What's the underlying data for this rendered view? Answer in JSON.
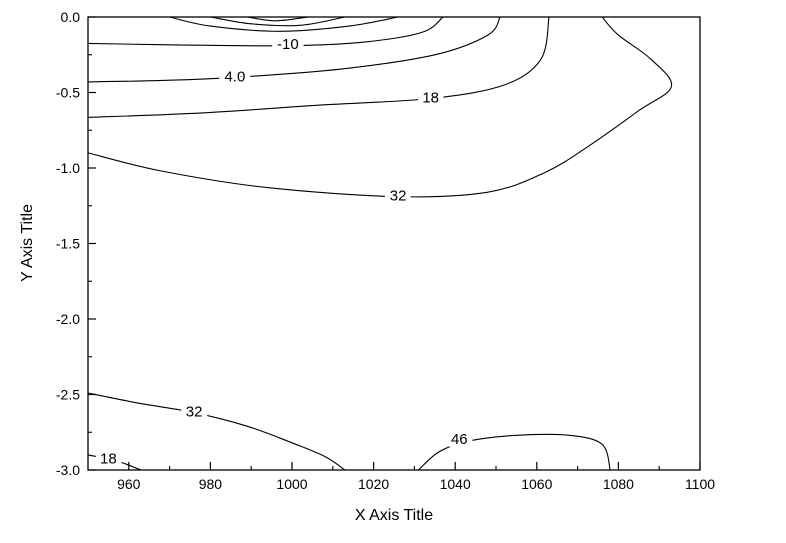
{
  "figure": {
    "background": "#ffffff",
    "line_color": "#000000",
    "text_color": "#000000"
  },
  "chart_data": {
    "type": "contour",
    "title": "",
    "xlabel": "X Axis Title",
    "ylabel": "Y Axis Title",
    "xlim": [
      950,
      1100
    ],
    "ylim": [
      -3,
      0
    ],
    "grid": false,
    "legend": "none",
    "x_major_ticks": [
      960,
      980,
      1000,
      1020,
      1040,
      1060,
      1080,
      1100
    ],
    "x_tick_labels": [
      "960",
      "980",
      "1000",
      "1020",
      "1040",
      "1060",
      "1080",
      "1100"
    ],
    "x_minor_step": 10,
    "y_major_ticks": [
      0,
      -0.5,
      -1,
      -1.5,
      -2,
      -2.5,
      -3
    ],
    "y_tick_labels": [
      "0.0",
      "-0.5",
      "-1.0",
      "-1.5",
      "-2.0",
      "-2.5",
      "-3.0"
    ],
    "y_minor_step": 0.25,
    "contours": [
      {
        "level": -38,
        "points": [
          [
            989,
            0
          ],
          [
            996,
            -0.025
          ],
          [
            1004,
            0
          ]
        ]
      },
      {
        "level": -24,
        "points": [
          [
            980,
            0
          ],
          [
            990,
            -0.045
          ],
          [
            1002,
            -0.055
          ],
          [
            1013,
            0
          ]
        ]
      },
      {
        "level": -24,
        "points": [
          [
            970,
            0
          ],
          [
            980,
            -0.06
          ],
          [
            997,
            -0.095
          ],
          [
            1014,
            -0.06
          ],
          [
            1026,
            0
          ]
        ]
      },
      {
        "level": -10,
        "points": [
          [
            950,
            -0.175
          ],
          [
            972,
            -0.185
          ],
          [
            999,
            -0.19
          ],
          [
            1018,
            -0.165
          ],
          [
            1032,
            -0.1
          ],
          [
            1037,
            0
          ]
        ]
      },
      {
        "level": 4,
        "points": [
          [
            950,
            -0.43
          ],
          [
            968,
            -0.42
          ],
          [
            986,
            -0.4
          ],
          [
            1012,
            -0.345
          ],
          [
            1035,
            -0.25
          ],
          [
            1048,
            -0.12
          ],
          [
            1051,
            0
          ]
        ]
      },
      {
        "level": 18,
        "points": [
          [
            950,
            -0.665
          ],
          [
            978,
            -0.635
          ],
          [
            1006,
            -0.585
          ],
          [
            1034,
            -0.54
          ],
          [
            1052,
            -0.45
          ],
          [
            1061,
            -0.28
          ],
          [
            1063,
            0
          ]
        ]
      },
      {
        "level": 32,
        "points": [
          [
            950,
            -0.9
          ],
          [
            968,
            -1.02
          ],
          [
            994,
            -1.13
          ],
          [
            1026,
            -1.19
          ],
          [
            1048,
            -1.16
          ],
          [
            1062,
            -1.03
          ],
          [
            1073,
            -0.85
          ],
          [
            1085,
            -0.62
          ],
          [
            1093,
            -0.46
          ],
          [
            1088,
            -0.28
          ],
          [
            1080,
            -0.12
          ],
          [
            1076,
            0
          ]
        ]
      },
      {
        "level": 32,
        "points": [
          [
            950,
            -2.49
          ],
          [
            963,
            -2.56
          ],
          [
            976,
            -2.62
          ],
          [
            989,
            -2.71
          ],
          [
            1000,
            -2.82
          ],
          [
            1008,
            -2.91
          ],
          [
            1013,
            -3
          ]
        ]
      },
      {
        "level": 18,
        "points": [
          [
            950,
            -2.9
          ],
          [
            957,
            -2.94
          ],
          [
            963,
            -3
          ]
        ]
      },
      {
        "level": 46,
        "points": [
          [
            1031,
            -3
          ],
          [
            1036,
            -2.88
          ],
          [
            1043,
            -2.81
          ],
          [
            1055,
            -2.77
          ],
          [
            1068,
            -2.77
          ],
          [
            1076,
            -2.83
          ],
          [
            1078,
            -3
          ]
        ]
      }
    ],
    "contour_labels": [
      {
        "text": "-10",
        "x": 999,
        "y": -0.185
      },
      {
        "text": "4.0",
        "x": 986,
        "y": -0.4
      },
      {
        "text": "18",
        "x": 1034,
        "y": -0.54
      },
      {
        "text": "32",
        "x": 1026,
        "y": -1.19
      },
      {
        "text": "32",
        "x": 976,
        "y": -2.62
      },
      {
        "text": "18",
        "x": 955,
        "y": -2.93
      },
      {
        "text": "46",
        "x": 1041,
        "y": -2.8
      }
    ]
  }
}
